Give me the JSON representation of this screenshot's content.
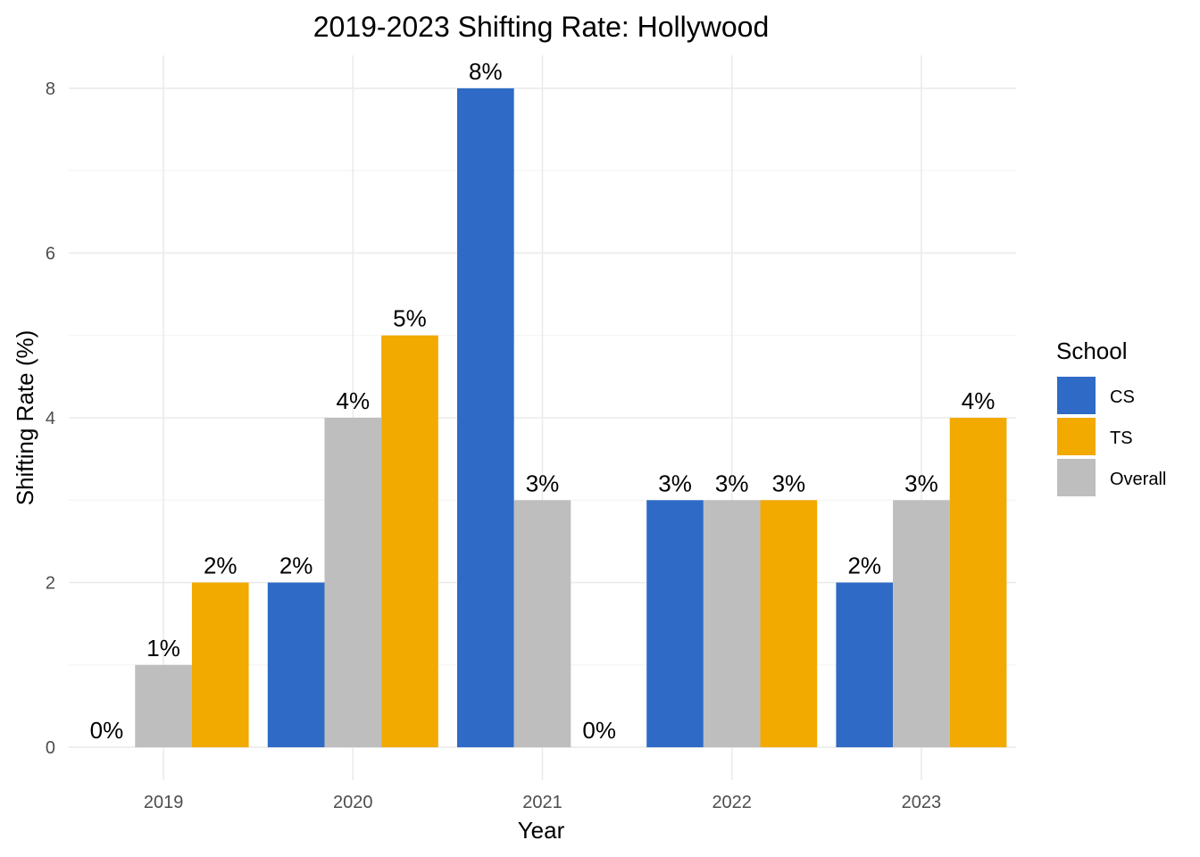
{
  "chart_data": {
    "type": "bar",
    "title": "2019-2023 Shifting Rate: Hollywood",
    "xlabel": "Year",
    "ylabel": "Shifting Rate (%)",
    "categories": [
      "2019",
      "2020",
      "2021",
      "2022",
      "2023"
    ],
    "ylim": [
      -0.4,
      8.4
    ],
    "yticks": [
      0,
      2,
      4,
      6,
      8
    ],
    "grid": true,
    "legend": {
      "title": "School",
      "position": "right"
    },
    "series": [
      {
        "name": "CS",
        "color": "#2f6bc6",
        "values": [
          0,
          2,
          8,
          3,
          2
        ],
        "labels": [
          "0%",
          "2%",
          "8%",
          "3%",
          "2%"
        ]
      },
      {
        "name": "Overall",
        "color": "#bebebe",
        "values": [
          1,
          4,
          3,
          3,
          3
        ],
        "labels": [
          "1%",
          "4%",
          "3%",
          "3%",
          "3%"
        ]
      },
      {
        "name": "TS",
        "color": "#f2a900",
        "values": [
          2,
          5,
          0,
          3,
          4
        ],
        "labels": [
          "2%",
          "5%",
          "0%",
          "3%",
          "4%"
        ]
      }
    ],
    "legend_order": [
      "CS",
      "TS",
      "Overall"
    ]
  }
}
